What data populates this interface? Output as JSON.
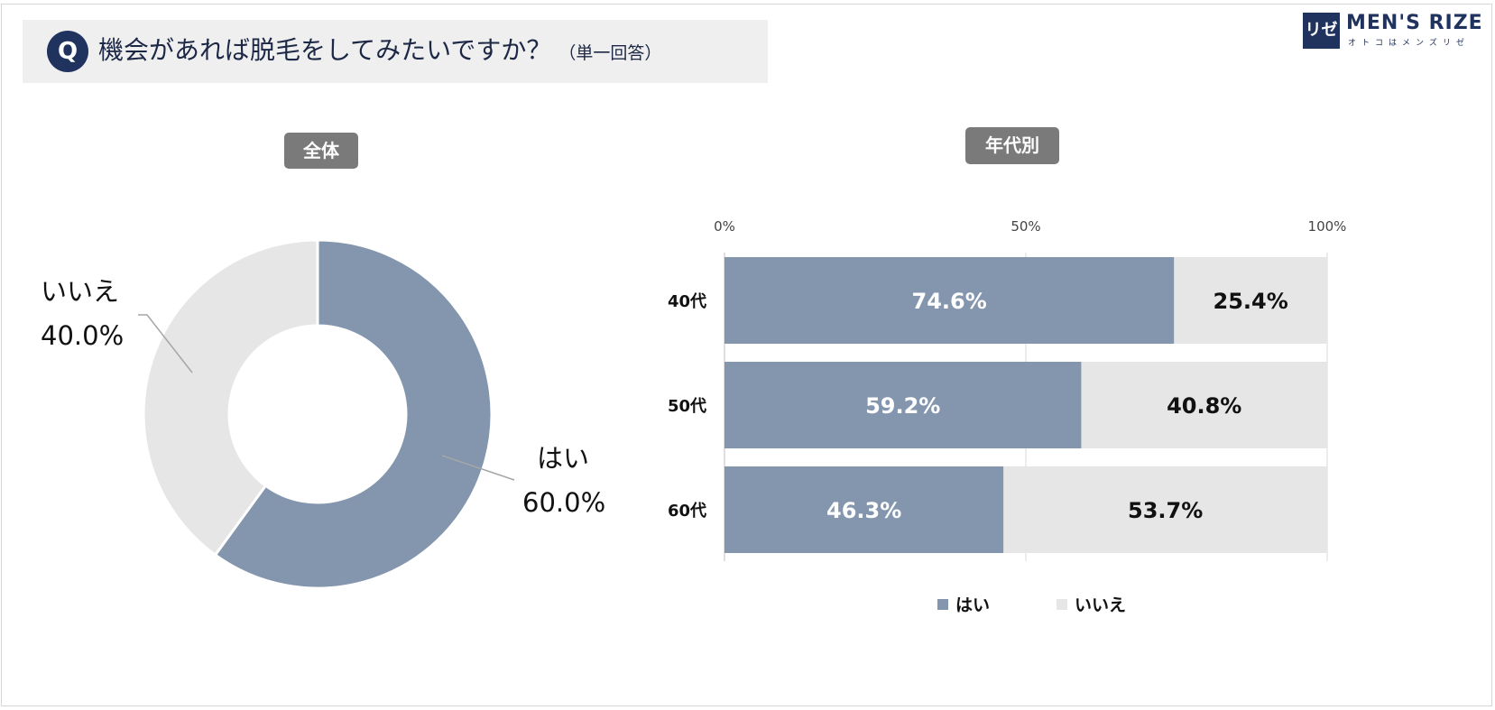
{
  "header": {
    "badge": "Q",
    "question": "機会があれば脱毛をしてみたいですか？",
    "note": "（単一回答）"
  },
  "logo": {
    "mark": "リゼ",
    "name": "MEN'S RIZE",
    "tagline": "オトコはメンズリゼ"
  },
  "colors": {
    "yes": "#8396ae",
    "no": "#e6e6e6",
    "accent": "#20325e",
    "pill": "#7a7a7a"
  },
  "chart_data": [
    {
      "type": "donut",
      "title": "全体",
      "slices": [
        {
          "label": "はい",
          "value": 60.0,
          "display": "60.0%"
        },
        {
          "label": "いいえ",
          "value": 40.0,
          "display": "40.0%"
        }
      ]
    },
    {
      "type": "stacked-bar-horizontal",
      "title": "年代別",
      "categories": [
        "40代",
        "50代",
        "60代"
      ],
      "series": [
        {
          "name": "はい",
          "values": [
            74.6,
            59.2,
            46.3
          ],
          "labels": [
            "74.6%",
            "59.2%",
            "46.3%"
          ]
        },
        {
          "name": "いいえ",
          "values": [
            25.4,
            40.8,
            53.7
          ],
          "labels": [
            "25.4%",
            "40.8%",
            "53.7%"
          ]
        }
      ],
      "xlim": [
        0,
        100
      ],
      "ticks": [
        "0%",
        "50%",
        "100%"
      ],
      "grid": true,
      "legend": "bottom"
    }
  ]
}
